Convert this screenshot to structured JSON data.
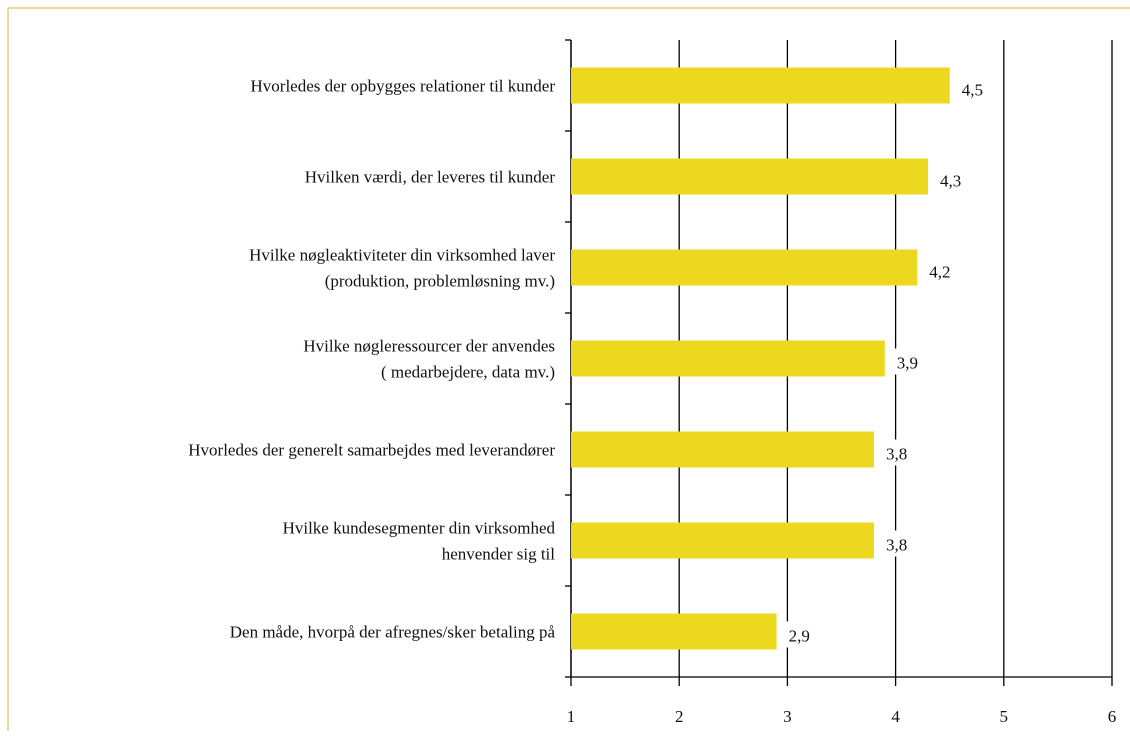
{
  "chart_data": {
    "type": "bar",
    "categories": [
      "Hvorledes der opbygges relationer til kunder",
      "Hvilken værdi, der leveres til kunder",
      "Hvilke nøgleaktiviteter din virksomhed laver\n(produktion, problemløsning mv.)",
      "Hvilke nøgleressourcer der anvendes\n( medarbejdere, data mv.)",
      "Hvorledes der generelt samarbejdes med leverandører",
      "Hvilke kundesegmenter din virksomhed\nhenvender sig til",
      "Den måde, hvorpå der afregnes/sker betaling på"
    ],
    "values": [
      4.5,
      4.3,
      4.2,
      3.9,
      3.8,
      3.8,
      2.9
    ],
    "value_labels": [
      "4,5",
      "4,3",
      "4,2",
      "3,9",
      "3,8",
      "3,8",
      "2,9"
    ],
    "color": "#ecd81e",
    "xlim": [
      1,
      6
    ],
    "xticks": [
      1,
      2,
      3,
      4,
      5,
      6
    ],
    "grid": true
  }
}
